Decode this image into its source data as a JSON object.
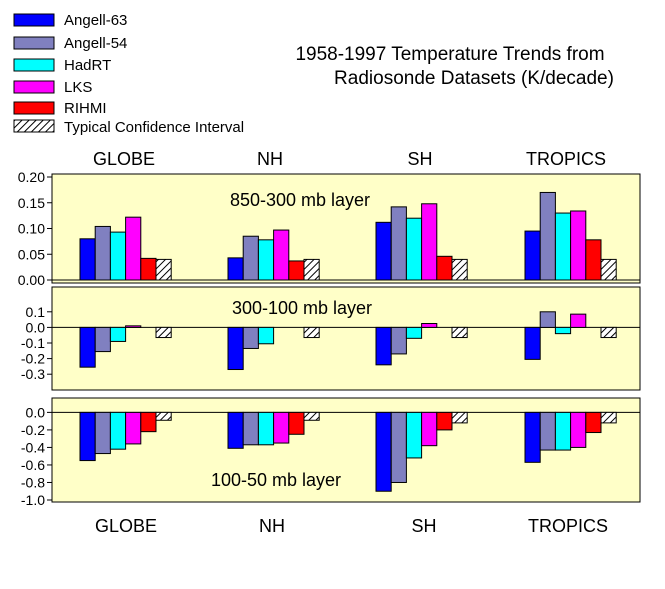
{
  "title": [
    "1958-1997 Temperature Trends from",
    "Radiosonde Datasets (K/decade)"
  ],
  "legend": [
    {
      "label": "Angell-63",
      "color": "#0000ff"
    },
    {
      "label": "Angell-54",
      "color": "#8080c0"
    },
    {
      "label": "HadRT",
      "color": "#00ffff"
    },
    {
      "label": "LKS",
      "color": "#ff00ff"
    },
    {
      "label": "RIHMI",
      "color": "#ff0000"
    },
    {
      "label": "Typical Confidence Interval",
      "color": "hatched"
    }
  ],
  "regions_top": [
    "GLOBE",
    "NH",
    "SH",
    "TROPICS"
  ],
  "regions_bottom": [
    "GLOBE",
    "NH",
    "SH",
    "TROPICS"
  ],
  "colors": {
    "panel_bg": "#ffffc8",
    "hatch": "#000000"
  },
  "chart_data": [
    {
      "type": "bar",
      "title": "850-300 mb layer",
      "categories": [
        "GLOBE",
        "NH",
        "SH",
        "TROPICS"
      ],
      "ylim": [
        0,
        0.2
      ],
      "yticks": [
        "0.00",
        "0.05",
        "0.10",
        "0.15",
        "0.20"
      ],
      "series": [
        {
          "name": "Angell-63",
          "values": [
            0.08,
            0.043,
            0.112,
            0.095
          ]
        },
        {
          "name": "Angell-54",
          "values": [
            0.104,
            0.085,
            0.142,
            0.17
          ]
        },
        {
          "name": "HadRT",
          "values": [
            0.093,
            0.078,
            0.12,
            0.13
          ]
        },
        {
          "name": "LKS",
          "values": [
            0.122,
            0.097,
            0.148,
            0.134
          ]
        },
        {
          "name": "RIHMI",
          "values": [
            0.042,
            0.037,
            0.046,
            0.078
          ]
        },
        {
          "name": "Typical Confidence Interval",
          "values": [
            0.04,
            0.04,
            0.04,
            0.04
          ]
        }
      ]
    },
    {
      "type": "bar",
      "title": "300-100 mb layer",
      "categories": [
        "GLOBE",
        "NH",
        "SH",
        "TROPICS"
      ],
      "ylim": [
        -0.35,
        0.15
      ],
      "yticks": [
        "0.1",
        "0.0",
        "-0.1",
        "-0.2",
        "-0.3"
      ],
      "series": [
        {
          "name": "Angell-63",
          "values": [
            -0.255,
            -0.27,
            -0.24,
            -0.205
          ]
        },
        {
          "name": "Angell-54",
          "values": [
            -0.155,
            -0.135,
            -0.17,
            0.1
          ]
        },
        {
          "name": "HadRT",
          "values": [
            -0.09,
            -0.105,
            -0.07,
            -0.04
          ]
        },
        {
          "name": "LKS",
          "values": [
            0.01,
            0.0,
            0.025,
            0.085
          ]
        },
        {
          "name": "RIHMI",
          "values": [
            0.0,
            0.0,
            0.0,
            0.0
          ]
        },
        {
          "name": "Typical Confidence Interval",
          "values": [
            -0.065,
            -0.065,
            -0.065,
            -0.065
          ]
        }
      ]
    },
    {
      "type": "bar",
      "title": "100-50 mb layer",
      "categories": [
        "GLOBE",
        "NH",
        "SH",
        "TROPICS"
      ],
      "ylim": [
        -1.0,
        0.05
      ],
      "yticks": [
        "0.0",
        "-0.2",
        "-0.4",
        "-0.6",
        "-0.8",
        "-1.0"
      ],
      "series": [
        {
          "name": "Angell-63",
          "values": [
            -0.55,
            -0.41,
            -0.9,
            -0.57
          ]
        },
        {
          "name": "Angell-54",
          "values": [
            -0.47,
            -0.37,
            -0.8,
            -0.43
          ]
        },
        {
          "name": "HadRT",
          "values": [
            -0.42,
            -0.37,
            -0.52,
            -0.43
          ]
        },
        {
          "name": "LKS",
          "values": [
            -0.36,
            -0.35,
            -0.38,
            -0.4
          ]
        },
        {
          "name": "RIHMI",
          "values": [
            -0.22,
            -0.25,
            -0.2,
            -0.23
          ]
        },
        {
          "name": "Typical Confidence Interval",
          "values": [
            -0.09,
            -0.09,
            -0.12,
            -0.12
          ]
        }
      ]
    }
  ]
}
